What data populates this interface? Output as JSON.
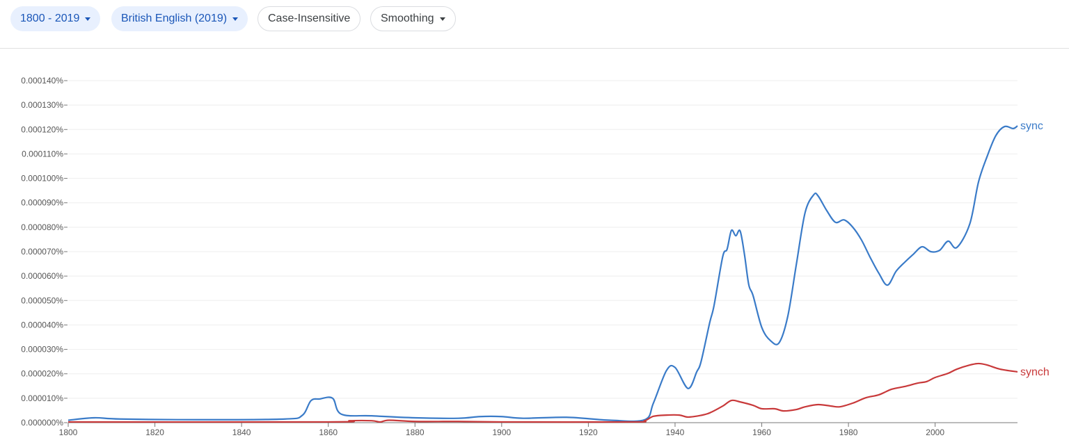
{
  "toolbar": {
    "year_range": "1800 - 2019",
    "corpus": "British English (2019)",
    "case": "Case-Insensitive",
    "smoothing": "Smoothing"
  },
  "chart_data": {
    "type": "line",
    "xlim": [
      1800,
      2019
    ],
    "ylim": [
      0,
      0.00014
    ],
    "grid": true,
    "y_tick_labels": [
      "0.000000%",
      "0.000010%",
      "0.000020%",
      "0.000030%",
      "0.000040%",
      "0.000050%",
      "0.000060%",
      "0.000070%",
      "0.000080%",
      "0.000090%",
      "0.000100%",
      "0.000110%",
      "0.000120%",
      "0.000130%",
      "0.000140%"
    ],
    "x_tick_labels": [
      "1800",
      "1820",
      "1840",
      "1860",
      "1880",
      "1900",
      "1920",
      "1940",
      "1960",
      "1980",
      "2000"
    ],
    "series": [
      {
        "name": "sync",
        "color": "#3a7bc8",
        "x": [
          1800,
          1806,
          1812,
          1830,
          1850,
          1854,
          1856,
          1858,
          1861,
          1863,
          1870,
          1880,
          1890,
          1895,
          1900,
          1905,
          1915,
          1925,
          1933,
          1935,
          1938,
          1940,
          1943,
          1945,
          1946,
          1948,
          1949,
          1951,
          1952,
          1953,
          1954,
          1955,
          1956,
          1957,
          1958,
          1960,
          1962,
          1964,
          1966,
          1968,
          1970,
          1972,
          1973,
          1975,
          1977,
          1979,
          1981,
          1983,
          1985,
          1987,
          1989,
          1991,
          1993,
          1995,
          1997,
          1999,
          2001,
          2003,
          2005,
          2008,
          2010,
          2012,
          2014,
          2016,
          2018,
          2019
        ],
        "y": [
          1e-06,
          2e-06,
          1.5e-06,
          1.2e-06,
          1.5e-06,
          3e-06,
          9e-06,
          9.7e-06,
          1e-05,
          3.5e-06,
          2.8e-06,
          2e-06,
          1.8e-06,
          2.5e-06,
          2.5e-06,
          1.8e-06,
          2.2e-06,
          1e-06,
          1.2e-06,
          8e-06,
          2.13e-05,
          2.26e-05,
          1.4e-05,
          2.08e-05,
          2.5e-05,
          4.1e-05,
          4.8e-05,
          6.8e-05,
          7.1e-05,
          7.87e-05,
          7.65e-05,
          7.85e-05,
          6.9e-05,
          5.65e-05,
          5.2e-05,
          3.9e-05,
          3.36e-05,
          3.27e-05,
          4.35e-05,
          6.5e-05,
          8.6e-05,
          9.33e-05,
          9.28e-05,
          8.68e-05,
          8.2e-05,
          8.3e-05,
          8e-05,
          7.48e-05,
          6.77e-05,
          6.12e-05,
          5.63e-05,
          6.2e-05,
          6.57e-05,
          6.9e-05,
          7.2e-05,
          7e-05,
          7.05e-05,
          7.43e-05,
          7.17e-05,
          8.14e-05,
          9.85e-05,
          0.000109,
          0.0001175,
          0.0001212,
          0.0001204,
          0.0001215
        ]
      },
      {
        "name": "synch",
        "color": "#c8393a",
        "x": [
          1800,
          1860,
          1865,
          1870,
          1872,
          1874,
          1880,
          1890,
          1900,
          1930,
          1933,
          1935,
          1938,
          1941,
          1943,
          1946,
          1948,
          1951,
          1953,
          1955,
          1958,
          1960,
          1963,
          1965,
          1968,
          1970,
          1973,
          1976,
          1978,
          1981,
          1984,
          1987,
          1990,
          1993,
          1996,
          1998,
          2000,
          2003,
          2005,
          2008,
          2010,
          2012,
          2015,
          2019
        ],
        "y": [
          3e-07,
          3e-07,
          8e-07,
          8e-07,
          3e-07,
          1e-06,
          5e-07,
          5e-07,
          3e-07,
          3e-07,
          8e-07,
          2.6e-06,
          3.1e-06,
          3.1e-06,
          2.3e-06,
          3e-06,
          4e-06,
          6.8e-06,
          9.1e-06,
          8.5e-06,
          7.1e-06,
          5.7e-06,
          5.7e-06,
          4.8e-06,
          5.4e-06,
          6.5e-06,
          7.4e-06,
          6.8e-06,
          6.5e-06,
          8e-06,
          1.02e-05,
          1.14e-05,
          1.37e-05,
          1.48e-05,
          1.62e-05,
          1.68e-05,
          1.85e-05,
          2.02e-05,
          2.19e-05,
          2.36e-05,
          2.42e-05,
          2.36e-05,
          2.19e-05,
          2.08e-05
        ]
      }
    ]
  }
}
